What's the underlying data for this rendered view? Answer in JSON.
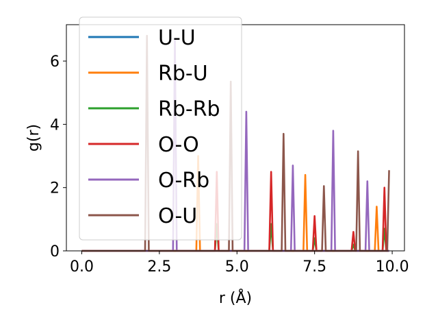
{
  "chart_data": {
    "type": "line",
    "title": "",
    "xlabel": "r (Å)",
    "ylabel": "g(r)",
    "xlim": [
      -0.495,
      10.395
    ],
    "ylim": [
      0,
      7.15
    ],
    "xticks": [
      0.0,
      2.5,
      5.0,
      7.5,
      10.0
    ],
    "xtick_labels": [
      "0.0",
      "2.5",
      "5.0",
      "7.5",
      "10.0"
    ],
    "yticks": [
      0,
      2,
      4,
      6
    ],
    "ytick_labels": [
      "0",
      "2",
      "4",
      "6"
    ],
    "grid": false,
    "legend_position": "upper-left",
    "series": [
      {
        "name": "U-U",
        "color": "#1f77b4",
        "peaks": []
      },
      {
        "name": "Rb-U",
        "color": "#ff7f0e",
        "peaks": [
          [
            3.75,
            3.0
          ],
          [
            7.2,
            2.4
          ],
          [
            9.5,
            1.4
          ]
        ]
      },
      {
        "name": "Rb-Rb",
        "color": "#2ca02c",
        "peaks": [
          [
            4.35,
            0.85
          ],
          [
            6.1,
            0.85
          ],
          [
            7.5,
            0.4
          ],
          [
            8.75,
            0.2
          ],
          [
            9.75,
            0.7
          ]
        ]
      },
      {
        "name": "O-O",
        "color": "#d62728",
        "peaks": [
          [
            4.35,
            2.5
          ],
          [
            6.1,
            2.5
          ],
          [
            7.5,
            1.1
          ],
          [
            8.75,
            0.6
          ],
          [
            9.75,
            2.0
          ]
        ]
      },
      {
        "name": "O-Rb",
        "color": "#9467bd",
        "peaks": [
          [
            3.0,
            6.7
          ],
          [
            5.3,
            4.4
          ],
          [
            6.8,
            2.7
          ],
          [
            8.1,
            3.8
          ],
          [
            9.2,
            2.2
          ]
        ]
      },
      {
        "name": "O-U",
        "color": "#8c564b",
        "peaks": [
          [
            2.1,
            6.8
          ],
          [
            4.8,
            5.35
          ],
          [
            6.5,
            3.7
          ],
          [
            7.8,
            2.05
          ],
          [
            8.9,
            3.15
          ],
          [
            9.9,
            2.55
          ]
        ]
      }
    ]
  }
}
